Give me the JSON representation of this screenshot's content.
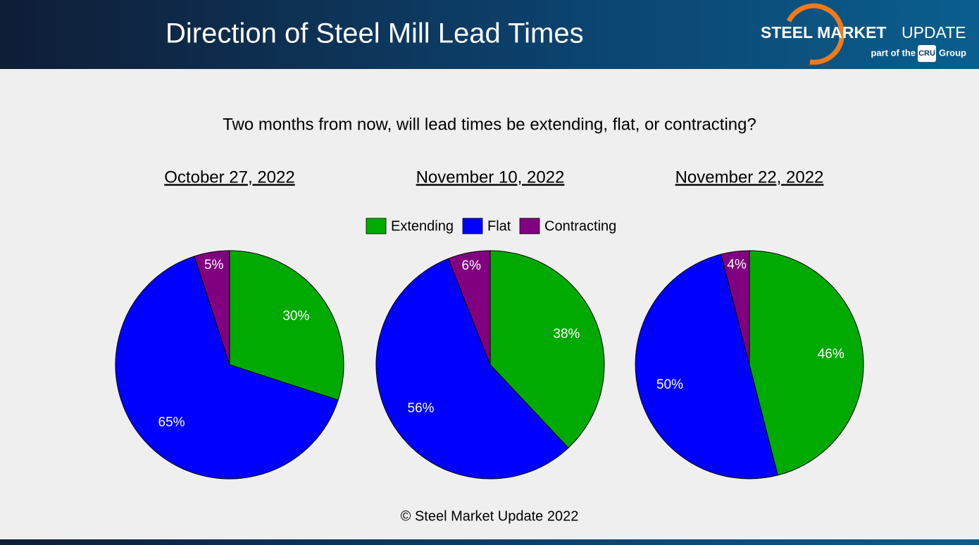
{
  "chart_data": {
    "type": "pie",
    "title": "Direction of Steel Mill Lead Times",
    "subtitle": "Two months from now, will lead times be extending, flat, or contracting?",
    "categories": [
      "Extending",
      "Flat",
      "Contracting"
    ],
    "colors": [
      "#00aa00",
      "#0000ff",
      "#800080"
    ],
    "series": [
      {
        "name": "October 27, 2022",
        "values": [
          30,
          65,
          5
        ],
        "value_labels": [
          "30%",
          "65%",
          "5%"
        ]
      },
      {
        "name": "November 10, 2022",
        "values": [
          38,
          56,
          6
        ],
        "value_labels": [
          "38%",
          "56%",
          "6%"
        ]
      },
      {
        "name": "November 22, 2022",
        "values": [
          46,
          50,
          4
        ],
        "value_labels": [
          "46%",
          "50%",
          "4%"
        ]
      }
    ],
    "source": "© Steel Market Update 2022"
  },
  "logo": {
    "brand_bold": "STEEL MARKET",
    "brand": "UPDATE",
    "tagline_pre": "part of the",
    "cru": "CRU",
    "tagline_post": "Group"
  }
}
